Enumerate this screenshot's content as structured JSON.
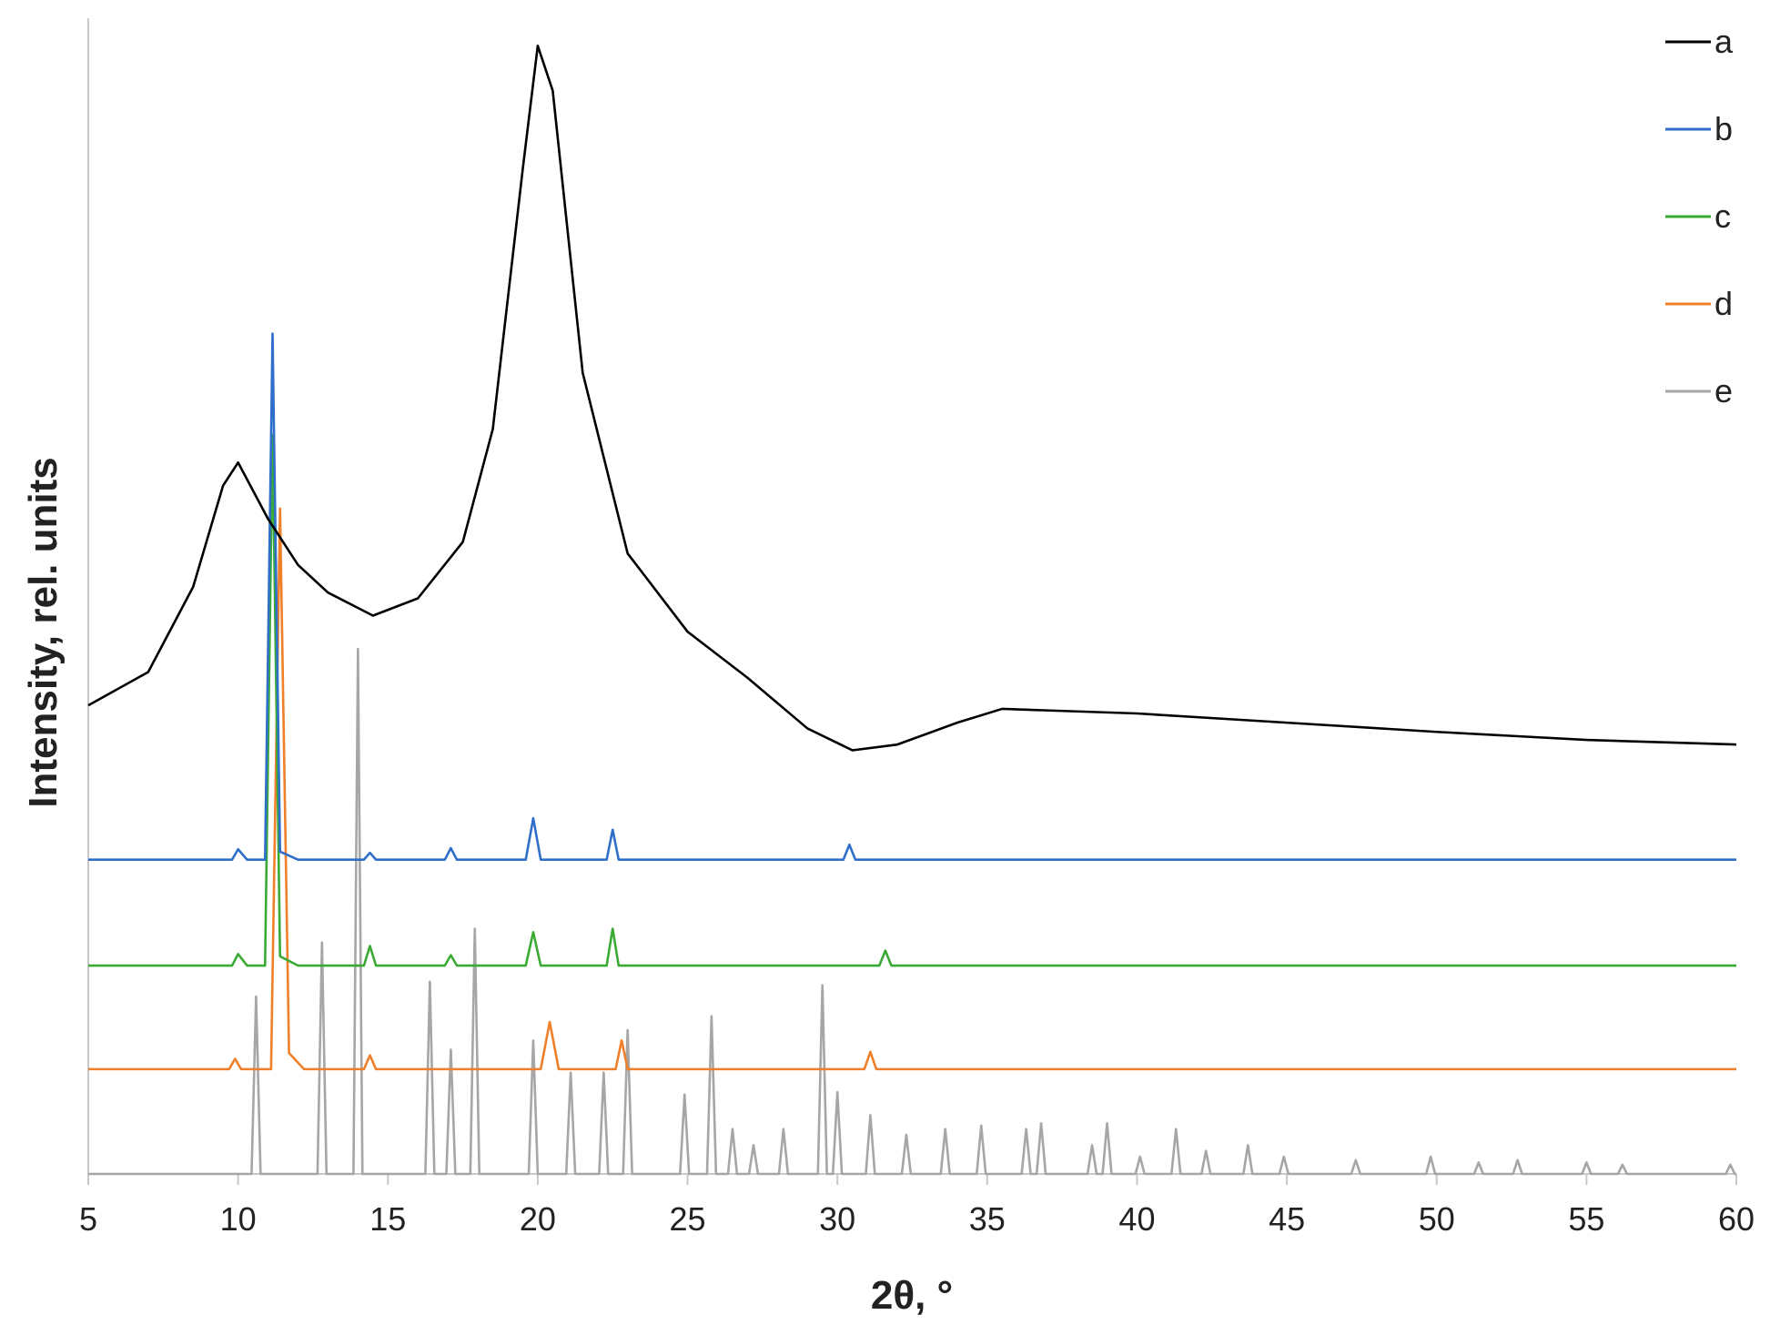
{
  "chart_data": {
    "type": "line",
    "xlabel": "2θ, °",
    "ylabel": "Intensity, rel. units",
    "xlim": [
      5,
      60
    ],
    "xticks": [
      5,
      10,
      15,
      20,
      25,
      30,
      35,
      40,
      45,
      50,
      55,
      60
    ],
    "ylim": [
      0,
      100
    ],
    "legend": "top-right",
    "series": [
      {
        "name": "a",
        "color": "#000000",
        "x": [
          5,
          7,
          8.5,
          9.5,
          10,
          11,
          12,
          13,
          14.5,
          16,
          17.5,
          18.5,
          19.5,
          20,
          20.5,
          21.5,
          23,
          25,
          27,
          29,
          30.5,
          32,
          34,
          35.5,
          40,
          45,
          50,
          55,
          60
        ],
        "values": [
          40.7,
          43.6,
          51,
          59.8,
          61.8,
          56.9,
          52.9,
          50.5,
          48.5,
          50,
          54.9,
          64.7,
          87.3,
          98,
          94.1,
          69.6,
          53.9,
          47.1,
          43.1,
          38.7,
          36.8,
          37.3,
          39.2,
          40.4,
          40,
          39.2,
          38.4,
          37.7,
          37.3
        ]
      },
      {
        "name": "b",
        "color": "#2f6fca",
        "x": [
          5,
          9.8,
          10,
          10.3,
          10.9,
          11.15,
          11.4,
          12,
          14.2,
          14.4,
          14.6,
          16.9,
          17.1,
          17.3,
          19.6,
          19.85,
          20.1,
          22.3,
          22.5,
          22.7,
          30.2,
          30.4,
          30.6,
          60
        ],
        "values": [
          27.3,
          27.3,
          28.2,
          27.3,
          27.3,
          73,
          28,
          27.3,
          27.3,
          27.9,
          27.3,
          27.3,
          28.3,
          27.3,
          27.3,
          30.9,
          27.3,
          27.3,
          29.9,
          27.3,
          27.3,
          28.6,
          27.3,
          27.3
        ]
      },
      {
        "name": "c",
        "color": "#3aaa35",
        "x": [
          5,
          9.8,
          10,
          10.3,
          10.9,
          11.15,
          11.4,
          12,
          14.2,
          14.4,
          14.6,
          16.9,
          17.1,
          17.3,
          19.6,
          19.85,
          20.1,
          22.3,
          22.5,
          22.7,
          31.4,
          31.6,
          31.8,
          60
        ],
        "values": [
          18.1,
          18.1,
          19.1,
          18.1,
          18.1,
          64.2,
          18.9,
          18.1,
          18.1,
          19.8,
          18.1,
          18.1,
          19,
          18.1,
          18.1,
          21,
          18.1,
          18.1,
          21.3,
          18.1,
          18.1,
          19.4,
          18.1,
          18.1
        ]
      },
      {
        "name": "d",
        "color": "#f07f2a",
        "x": [
          5,
          9.7,
          9.9,
          10.1,
          11.1,
          11.4,
          11.7,
          12.2,
          14.2,
          14.4,
          14.6,
          20.1,
          20.4,
          20.7,
          22.6,
          22.8,
          23,
          30.9,
          31.1,
          31.3,
          60
        ],
        "values": [
          9.1,
          9.1,
          10,
          9.1,
          9.1,
          57.8,
          10.5,
          9.1,
          9.1,
          10.3,
          9.1,
          9.1,
          13.2,
          9.1,
          9.1,
          11.6,
          9.1,
          9.1,
          10.6,
          9.1,
          9.1
        ]
      },
      {
        "name": "e",
        "color": "#a6a6a6",
        "x": [
          5,
          10.45,
          10.6,
          10.75,
          12.65,
          12.8,
          12.95,
          13.85,
          14,
          14.15,
          16.25,
          16.4,
          16.55,
          16.95,
          17.1,
          17.25,
          17.75,
          17.9,
          18.05,
          19.7,
          19.85,
          20,
          20.95,
          21.1,
          21.25,
          22.05,
          22.2,
          22.35,
          22.85,
          23,
          23.15,
          24.75,
          24.9,
          25.05,
          25.65,
          25.8,
          25.95,
          26.35,
          26.5,
          26.65,
          27.05,
          27.2,
          27.35,
          28.05,
          28.2,
          28.35,
          29.35,
          29.5,
          29.65,
          29.85,
          30,
          30.15,
          30.95,
          31.1,
          31.25,
          32.15,
          32.3,
          32.45,
          33.45,
          33.6,
          33.75,
          34.65,
          34.8,
          34.95,
          36.15,
          36.3,
          36.45,
          36.65,
          36.8,
          36.95,
          38.35,
          38.5,
          38.65,
          38.85,
          39,
          39.15,
          39.95,
          40.1,
          40.25,
          41.15,
          41.3,
          41.45,
          42.15,
          42.3,
          42.45,
          43.55,
          43.7,
          43.85,
          44.75,
          44.9,
          45.05,
          47.15,
          47.3,
          47.45,
          49.65,
          49.8,
          49.95,
          51.25,
          51.4,
          51.55,
          52.55,
          52.7,
          52.85,
          54.85,
          55,
          55.15,
          56.05,
          56.2,
          56.35,
          59.65,
          59.8,
          59.95,
          60
        ],
        "values": [
          0,
          0,
          15.4,
          0,
          0,
          20.1,
          0,
          0,
          45.6,
          0,
          0,
          16.7,
          0,
          0,
          10.8,
          0,
          0,
          21.3,
          0,
          0,
          11.6,
          0,
          0,
          8.8,
          0,
          0,
          8.8,
          0,
          0,
          12.5,
          0,
          0,
          6.9,
          0,
          0,
          13.7,
          0,
          0,
          3.9,
          0,
          0,
          2.5,
          0,
          0,
          3.9,
          0,
          0,
          16.4,
          0,
          0,
          7.1,
          0,
          0,
          5.1,
          0,
          0,
          3.4,
          0,
          0,
          3.9,
          0,
          0,
          4.2,
          0,
          0,
          3.9,
          0,
          0,
          4.4,
          0,
          0,
          2.5,
          0,
          0,
          4.4,
          0,
          0,
          1.5,
          0,
          0,
          3.9,
          0,
          0,
          2,
          0,
          0,
          2.5,
          0,
          0,
          1.5,
          0,
          0,
          1.2,
          0,
          0,
          1.5,
          0,
          0,
          1,
          0,
          0,
          1.2,
          0,
          0,
          1,
          0,
          0,
          0.8,
          0,
          0,
          0.8,
          0,
          0
        ]
      }
    ]
  }
}
